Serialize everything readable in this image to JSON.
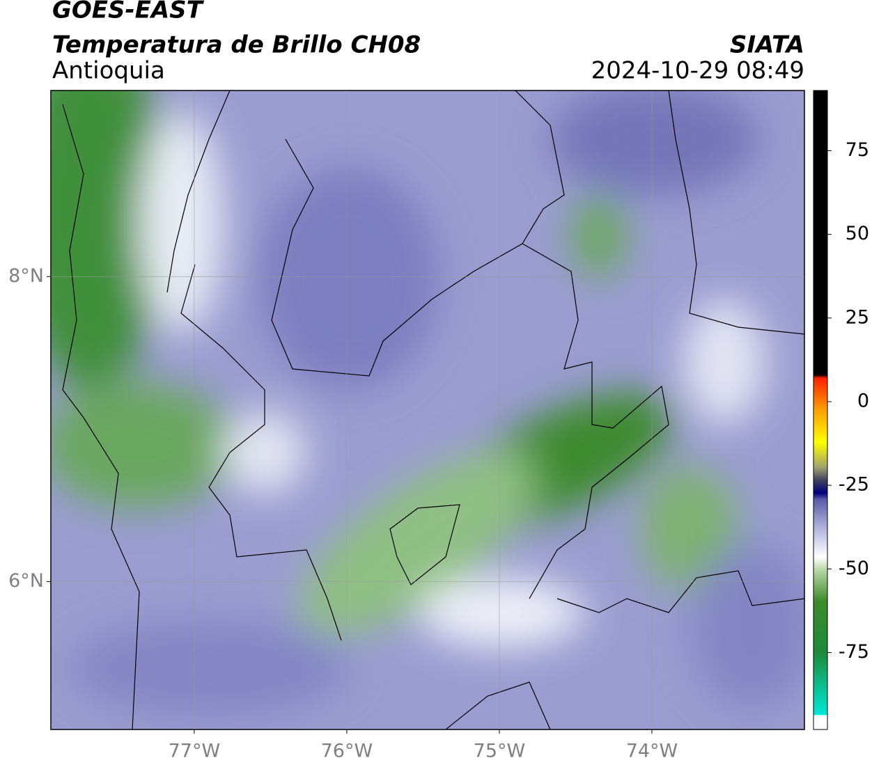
{
  "header": {
    "title": "GOES-EAST",
    "subtitle": "Temperatura de Brillo CH08",
    "region": "Antioquia",
    "source": "SIATA",
    "datetime": "2024-10-29 08:49"
  },
  "map": {
    "xlim": [
      -77.94,
      -73.0
    ],
    "ylim": [
      5.03,
      9.22
    ],
    "xticks": [
      {
        "value": -77,
        "label": "77°W"
      },
      {
        "value": -76,
        "label": "76°W"
      },
      {
        "value": -75,
        "label": "75°W"
      },
      {
        "value": -74,
        "label": "74°W"
      }
    ],
    "yticks": [
      {
        "value": 6,
        "label": "6°N"
      },
      {
        "value": 8,
        "label": "8°N"
      }
    ],
    "grid": true
  },
  "colorbar": {
    "lim": [
      -98,
      93
    ],
    "ticks": [
      75,
      50,
      25,
      0,
      -25,
      -50,
      -75
    ]
  }
}
